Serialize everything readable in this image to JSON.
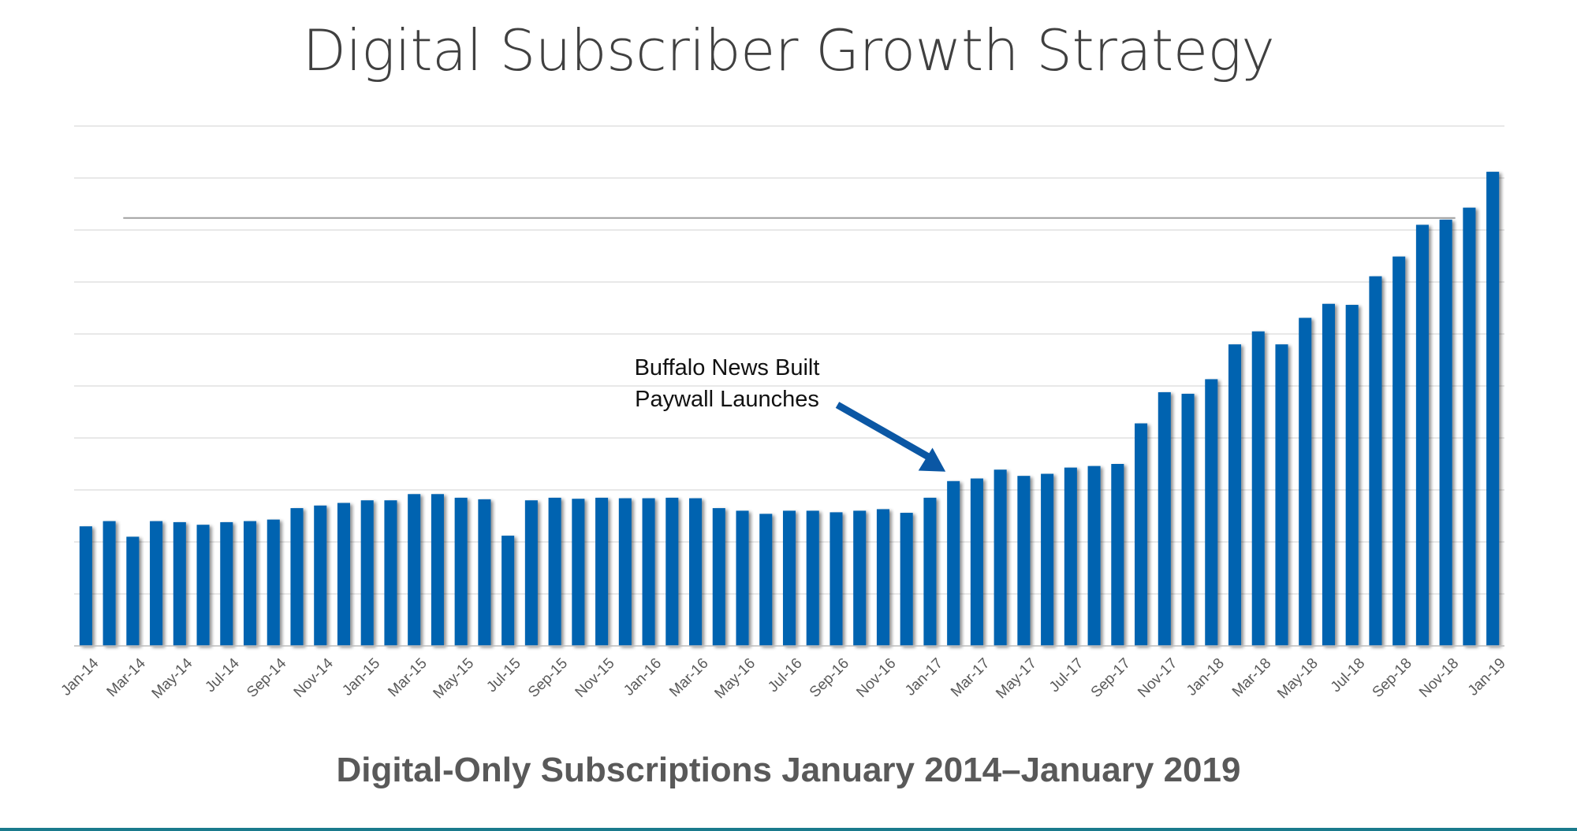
{
  "page": {
    "title": "Digital Subscriber Growth Strategy",
    "accent_color": "#0563b0",
    "footer_rule_color": "#1a7a8c"
  },
  "chart_data": {
    "type": "bar",
    "title": "Digital Subscriber Growth Strategy",
    "subtitle": "Digital-Only Subscriptions January 2014–January 2019",
    "xlabel": "",
    "ylabel": "",
    "ylim": [
      0,
      10
    ],
    "y_tick_labels_shown": false,
    "grid": true,
    "legend": "none",
    "bar_color": "#0563b0",
    "categories": [
      "Jan-14",
      "Feb-14",
      "Mar-14",
      "Apr-14",
      "May-14",
      "Jun-14",
      "Jul-14",
      "Aug-14",
      "Sep-14",
      "Oct-14",
      "Nov-14",
      "Dec-14",
      "Jan-15",
      "Feb-15",
      "Mar-15",
      "Apr-15",
      "May-15",
      "Jun-15",
      "Jul-15",
      "Aug-15",
      "Sep-15",
      "Oct-15",
      "Nov-15",
      "Dec-15",
      "Jan-16",
      "Feb-16",
      "Mar-16",
      "Apr-16",
      "May-16",
      "Jun-16",
      "Jul-16",
      "Aug-16",
      "Sep-16",
      "Oct-16",
      "Nov-16",
      "Dec-16",
      "Jan-17",
      "Feb-17",
      "Mar-17",
      "Apr-17",
      "May-17",
      "Jun-17",
      "Jul-17",
      "Aug-17",
      "Sep-17",
      "Oct-17",
      "Nov-17",
      "Dec-17",
      "Jan-18",
      "Feb-18",
      "Mar-18",
      "Apr-18",
      "May-18",
      "Jun-18",
      "Jul-18",
      "Aug-18",
      "Sep-18",
      "Oct-18",
      "Nov-18",
      "Dec-18",
      "Jan-19"
    ],
    "x_tick_labels": [
      "Jan-14",
      "Mar-14",
      "May-14",
      "Jul-14",
      "Sep-14",
      "Nov-14",
      "Jan-15",
      "Mar-15",
      "May-15",
      "Jul-15",
      "Sep-15",
      "Nov-15",
      "Jan-16",
      "Mar-16",
      "May-16",
      "Jul-16",
      "Sep-16",
      "Nov-16",
      "Jan-17",
      "Mar-17",
      "May-17",
      "Jul-17",
      "Sep-17",
      "Nov-17",
      "Jan-18",
      "Mar-18",
      "May-18",
      "Jul-18",
      "Sep-18",
      "Nov-18",
      "Jan-19"
    ],
    "values": [
      2.3,
      2.4,
      2.1,
      2.4,
      2.38,
      2.33,
      2.38,
      2.4,
      2.43,
      2.65,
      2.7,
      2.75,
      2.8,
      2.8,
      2.92,
      2.92,
      2.85,
      2.82,
      2.12,
      2.8,
      2.85,
      2.83,
      2.85,
      2.84,
      2.84,
      2.85,
      2.84,
      2.65,
      2.6,
      2.54,
      2.6,
      2.6,
      2.57,
      2.6,
      2.63,
      2.56,
      2.85,
      3.17,
      3.22,
      3.39,
      3.27,
      3.31,
      3.43,
      3.46,
      3.5,
      4.28,
      4.88,
      4.85,
      5.13,
      5.8,
      6.05,
      5.8,
      6.31,
      6.58,
      6.56,
      7.11,
      7.49,
      8.1,
      8.2,
      8.43,
      9.12
    ],
    "reference_line": {
      "value": 8.2,
      "from_category": "Mar-14",
      "to_category": "Nov-18",
      "color": "#a0a0a0"
    },
    "annotations": [
      {
        "text_lines": [
          "Buffalo News Built",
          "Paywall Launches"
        ],
        "points_to": "Feb-17"
      }
    ]
  }
}
